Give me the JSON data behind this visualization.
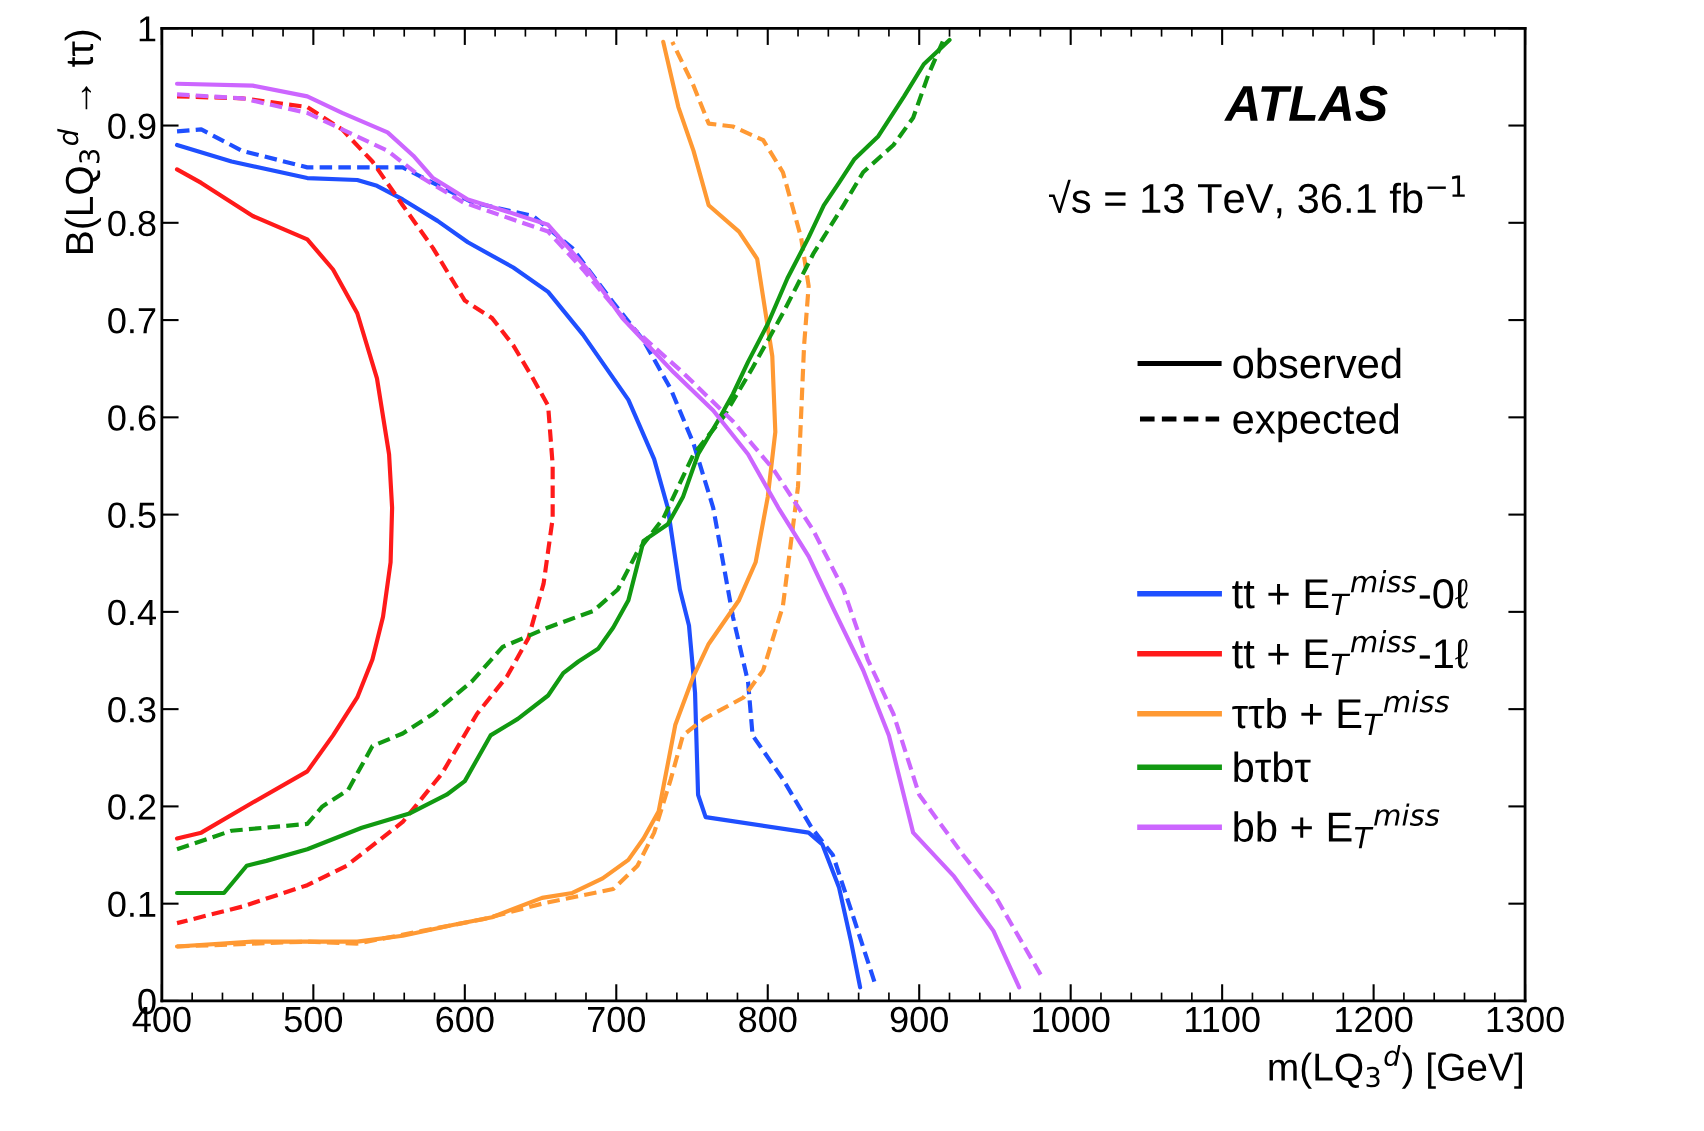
{
  "chart_data": {
    "type": "line",
    "xlabel": "m(LQ$_{3}$$^{d}$) [GeV]",
    "ylabel": "B(LQ$_{3}$$^{d}$ → tτ)",
    "xlim": [
      400,
      1300
    ],
    "xticks": [
      400,
      500,
      600,
      700,
      800,
      900,
      1000,
      1100,
      1200,
      1300
    ],
    "ylim": [
      0,
      1
    ],
    "yticks": [
      0,
      0.1,
      0.2,
      0.3,
      0.4,
      0.5,
      0.6,
      0.7,
      0.8,
      0.9,
      1
    ],
    "grid": false,
    "legend": "right",
    "marker": "none",
    "annotations": [
      "ATLAS",
      "√s = 13 TeV, 36.1 fb$^{−1}$",
      "observed",
      "expected"
    ],
    "series": [
      {
        "name": "tt + E$_{T}$$^{miss}$-0ℓ",
        "color": "#1f4fff",
        "line_style": "solid",
        "x": [
          410,
          446,
          496,
          529,
          542,
          559,
          582,
          602,
          632,
          655,
          678,
          708,
          725,
          734,
          742,
          748,
          752,
          754,
          759,
          827,
          836,
          847,
          855,
          861
        ],
        "values": [
          0.88,
          0.863,
          0.846,
          0.844,
          0.838,
          0.824,
          0.802,
          0.78,
          0.754,
          0.729,
          0.685,
          0.618,
          0.557,
          0.507,
          0.423,
          0.386,
          0.317,
          0.212,
          0.189,
          0.173,
          0.161,
          0.117,
          0.061,
          0.014
        ]
      },
      {
        "color": "#1f4fff",
        "line_style": "dashed",
        "x": [
          410,
          426,
          453,
          496,
          559,
          579,
          605,
          645,
          671,
          698,
          718,
          736,
          751,
          764,
          777,
          787,
          790,
          810,
          829,
          843,
          857,
          871
        ],
        "values": [
          0.894,
          0.896,
          0.874,
          0.857,
          0.857,
          0.841,
          0.821,
          0.807,
          0.774,
          0.718,
          0.679,
          0.629,
          0.573,
          0.507,
          0.395,
          0.328,
          0.273,
          0.228,
          0.178,
          0.15,
          0.084,
          0.017
        ]
      },
      {
        "name": "tt + E$_{T}$$^{miss}$-1ℓ",
        "color": "#ff1a1a",
        "line_style": "solid",
        "x": [
          410,
          426,
          460,
          496,
          513,
          529,
          542,
          550,
          552,
          551,
          546,
          539,
          529,
          513,
          496,
          460,
          426,
          410
        ],
        "values": [
          0.855,
          0.841,
          0.807,
          0.783,
          0.752,
          0.707,
          0.64,
          0.562,
          0.507,
          0.451,
          0.395,
          0.351,
          0.312,
          0.273,
          0.236,
          0.204,
          0.173,
          0.167
        ]
      },
      {
        "color": "#ff1a1a",
        "line_style": "dashed",
        "x": [
          410,
          453,
          496,
          519,
          539,
          559,
          579,
          600,
          618,
          632,
          645,
          655,
          658,
          658,
          652,
          642,
          628,
          608,
          585,
          559,
          522,
          496,
          453,
          410
        ],
        "values": [
          0.93,
          0.928,
          0.919,
          0.896,
          0.863,
          0.818,
          0.774,
          0.72,
          0.702,
          0.674,
          0.64,
          0.612,
          0.551,
          0.496,
          0.429,
          0.373,
          0.334,
          0.295,
          0.234,
          0.184,
          0.139,
          0.119,
          0.097,
          0.08
        ]
      },
      {
        "name": "ττb + E$_{T}$$^{miss}$",
        "color": "#ff9933",
        "line_style": "solid",
        "x": [
          410,
          460,
          529,
          559,
          592,
          618,
          651,
          671,
          691,
          708,
          718,
          728,
          739,
          751,
          761,
          781,
          792,
          800,
          805,
          803,
          793,
          781,
          761,
          751,
          741,
          731
        ],
        "values": [
          0.056,
          0.061,
          0.061,
          0.067,
          0.078,
          0.086,
          0.106,
          0.111,
          0.126,
          0.145,
          0.167,
          0.195,
          0.284,
          0.334,
          0.367,
          0.412,
          0.451,
          0.518,
          0.585,
          0.663,
          0.763,
          0.791,
          0.818,
          0.874,
          0.919,
          0.986
        ]
      },
      {
        "color": "#ff9933",
        "line_style": "dashed",
        "x": [
          410,
          496,
          529,
          572,
          612,
          651,
          698,
          714,
          725,
          736,
          744,
          758,
          784,
          797,
          810,
          820,
          824,
          827,
          822,
          810,
          797,
          777,
          761,
          751,
          737
        ],
        "values": [
          0.056,
          0.061,
          0.059,
          0.072,
          0.084,
          0.1,
          0.115,
          0.139,
          0.173,
          0.228,
          0.273,
          0.29,
          0.312,
          0.34,
          0.406,
          0.529,
          0.674,
          0.735,
          0.785,
          0.852,
          0.885,
          0.899,
          0.902,
          0.941,
          0.986
        ]
      },
      {
        "name": "bτbτ",
        "color": "#119911",
        "line_style": "solid",
        "x": [
          410,
          441,
          456,
          469,
          496,
          532,
          564,
          588,
          600,
          617,
          635,
          655,
          665,
          675,
          688,
          698,
          708,
          718,
          734,
          744,
          754,
          767,
          777,
          787,
          800,
          813,
          827,
          837,
          847,
          857,
          873,
          890,
          903,
          920
        ],
        "values": [
          0.111,
          0.111,
          0.139,
          0.144,
          0.156,
          0.178,
          0.193,
          0.212,
          0.226,
          0.273,
          0.29,
          0.314,
          0.337,
          0.349,
          0.362,
          0.384,
          0.412,
          0.473,
          0.49,
          0.518,
          0.562,
          0.596,
          0.624,
          0.657,
          0.696,
          0.743,
          0.785,
          0.818,
          0.841,
          0.865,
          0.889,
          0.93,
          0.963,
          0.988
        ]
      },
      {
        "color": "#119911",
        "line_style": "dashed",
        "x": [
          410,
          446,
          496,
          506,
          523,
          539,
          559,
          579,
          605,
          625,
          655,
          685,
          701,
          714,
          731,
          751,
          771,
          790,
          810,
          830,
          850,
          863,
          883,
          896,
          906,
          916
        ],
        "values": [
          0.156,
          0.175,
          0.182,
          0.2,
          0.217,
          0.262,
          0.275,
          0.295,
          0.329,
          0.364,
          0.384,
          0.401,
          0.423,
          0.462,
          0.496,
          0.562,
          0.601,
          0.651,
          0.707,
          0.768,
          0.818,
          0.852,
          0.88,
          0.908,
          0.952,
          0.988
        ]
      },
      {
        "name": "bb + E$_{T}$$^{miss}$",
        "color": "#cc66ff",
        "line_style": "solid",
        "x": [
          410,
          460,
          496,
          519,
          549,
          566,
          579,
          602,
          625,
          655,
          681,
          704,
          738,
          764,
          787,
          807,
          827,
          844,
          863,
          880,
          896,
          923,
          949,
          966
        ],
        "values": [
          0.943,
          0.941,
          0.93,
          0.913,
          0.893,
          0.869,
          0.846,
          0.824,
          0.813,
          0.798,
          0.752,
          0.702,
          0.646,
          0.607,
          0.562,
          0.507,
          0.457,
          0.401,
          0.34,
          0.273,
          0.173,
          0.128,
          0.072,
          0.014
        ]
      },
      {
        "color": "#cc66ff",
        "line_style": "dashed",
        "x": [
          410,
          453,
          496,
          519,
          549,
          572,
          599,
          625,
          655,
          678,
          708,
          744,
          777,
          804,
          830,
          850,
          866,
          883,
          900,
          929,
          949,
          982
        ],
        "values": [
          0.932,
          0.928,
          0.913,
          0.896,
          0.874,
          0.846,
          0.821,
          0.807,
          0.791,
          0.752,
          0.696,
          0.646,
          0.596,
          0.546,
          0.484,
          0.423,
          0.351,
          0.295,
          0.212,
          0.15,
          0.111,
          0.022
        ]
      }
    ]
  }
}
